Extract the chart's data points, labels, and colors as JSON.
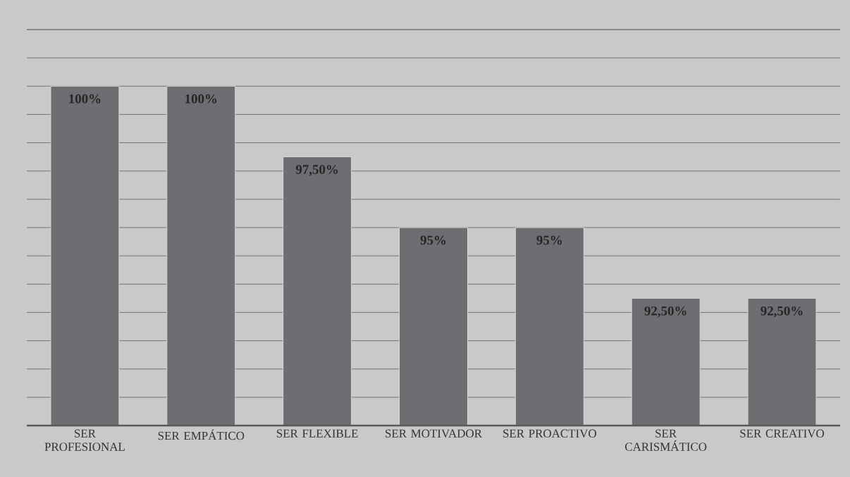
{
  "chart_data": {
    "type": "bar",
    "categories": [
      "SER PROFESIONAL",
      "SER EMPÁTICO",
      "SER FLEXIBLE",
      "SER MOTIVADOR",
      "SER PROACTIVO",
      "SER CARISMÁTICO",
      "SER CREATIVO"
    ],
    "values": [
      100,
      100,
      97.5,
      95,
      95,
      92.5,
      92.5
    ],
    "value_labels": [
      "100%",
      "100%",
      "97,50%",
      "95%",
      "95%",
      "92,50%",
      "92,50%"
    ],
    "color": "#6d6e71",
    "ylim": [
      88,
      102
    ],
    "grid": "y",
    "tick_labels": "x"
  }
}
